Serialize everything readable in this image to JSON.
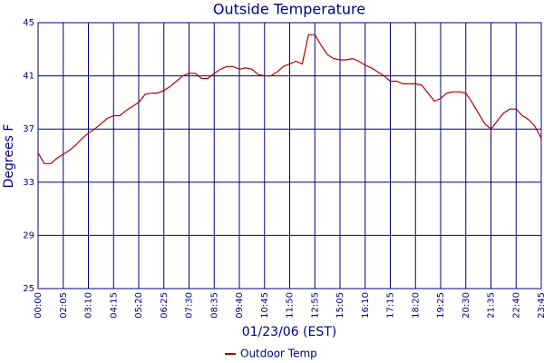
{
  "chart_data": {
    "type": "line",
    "title": "Outside Temperature",
    "x_label": "01/23/06 (EST)",
    "y_label": "Degrees F",
    "categories": [
      "00:00",
      null,
      null,
      null,
      "02:05",
      null,
      null,
      null,
      "03:10",
      null,
      null,
      null,
      "04:15",
      null,
      null,
      null,
      "05:20",
      null,
      null,
      null,
      "06:25",
      null,
      null,
      null,
      "07:30",
      null,
      null,
      null,
      "08:35",
      null,
      null,
      null,
      "09:40",
      null,
      null,
      null,
      "10:45",
      null,
      null,
      null,
      "11:50",
      null,
      null,
      null,
      "12:55",
      null,
      null,
      null,
      "15:05",
      null,
      null,
      null,
      "16:10",
      null,
      null,
      null,
      "17:15",
      null,
      null,
      null,
      "18:20",
      null,
      null,
      null,
      "19:25",
      null,
      null,
      null,
      "20:30",
      null,
      null,
      null,
      "21:35",
      null,
      null,
      null,
      "22:40",
      null,
      null,
      null,
      "23:45"
    ],
    "series": [
      {
        "name": "Outdoor Temp",
        "color": "#b00000",
        "values": [
          35.2,
          34.4,
          34.4,
          34.8,
          35.1,
          35.4,
          35.8,
          36.3,
          36.7,
          37.0,
          37.4,
          37.8,
          38.0,
          38.0,
          38.4,
          38.7,
          39.0,
          39.6,
          39.7,
          39.7,
          39.9,
          40.2,
          40.6,
          41.0,
          41.2,
          41.2,
          40.8,
          40.8,
          41.2,
          41.5,
          41.7,
          41.7,
          41.5,
          41.6,
          41.5,
          41.1,
          41.0,
          41.0,
          41.3,
          41.7,
          41.9,
          42.1,
          41.9,
          44.1,
          44.1,
          43.3,
          42.6,
          42.3,
          42.2,
          42.2,
          42.3,
          42.1,
          41.8,
          41.6,
          41.3,
          41.0,
          40.6,
          40.6,
          40.4,
          40.4,
          40.4,
          40.3,
          39.7,
          39.1,
          39.3,
          39.7,
          39.8,
          39.8,
          39.7,
          39.0,
          38.2,
          37.4,
          37.0,
          37.6,
          38.2,
          38.5,
          38.5,
          38.0,
          37.7,
          37.2,
          36.3
        ]
      }
    ],
    "ylim": [
      25,
      45
    ],
    "yticks": [
      25,
      29,
      33,
      37,
      41,
      45
    ],
    "grid": true,
    "legend": "bottom"
  }
}
